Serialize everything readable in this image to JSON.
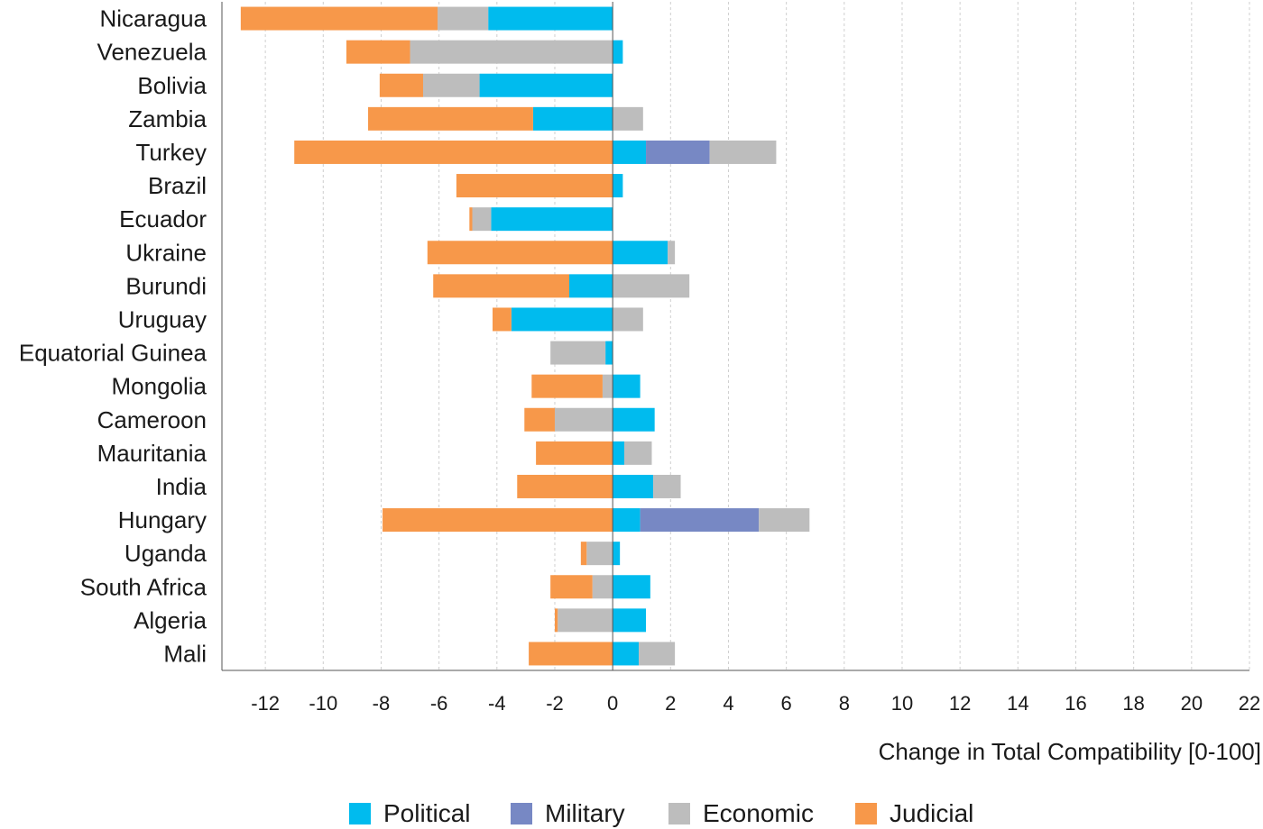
{
  "chart_data": {
    "type": "bar",
    "orientation": "horizontal",
    "stacked": true,
    "title": "",
    "xlabel": "Change in Total Compatibility [0-100]",
    "ylabel": "",
    "xlim": [
      -13.5,
      22
    ],
    "xticks": [
      -12,
      -10,
      -8,
      -6,
      -4,
      -2,
      0,
      2,
      4,
      6,
      8,
      10,
      12,
      14,
      16,
      18,
      20,
      22
    ],
    "xtick_labels": [
      "-12",
      "-10",
      "-8",
      "-6",
      "-4",
      "-2",
      "0",
      "2",
      "4",
      "6",
      "8",
      "10",
      "12",
      "14",
      "16",
      "18",
      "20",
      "22"
    ],
    "grid": "vertical dashed",
    "legend_position": "bottom",
    "categories": [
      "Nicaragua",
      "Venezuela",
      "Bolivia",
      "Zambia",
      "Turkey",
      "Brazil",
      "Ecuador",
      "Ukraine",
      "Burundi",
      "Uruguay",
      "Equatorial Guinea",
      "Mongolia",
      "Cameroon",
      "Mauritania",
      "India",
      "Hungary",
      "Uganda",
      "South Africa",
      "Algeria",
      "Mali"
    ],
    "series": [
      {
        "name": "Political",
        "color": "#00BBEE",
        "values": [
          -4.3,
          0.35,
          -4.6,
          -2.75,
          1.15,
          0.35,
          -4.2,
          1.9,
          -1.5,
          -3.5,
          -0.25,
          0.95,
          1.45,
          0.4,
          1.4,
          0.95,
          0.25,
          1.3,
          1.15,
          0.9
        ]
      },
      {
        "name": "Military",
        "color": "#7788C4",
        "values": [
          0,
          0,
          0,
          0,
          2.2,
          0,
          0,
          0,
          0,
          0,
          0,
          0,
          0,
          0,
          0,
          4.1,
          0,
          0,
          0,
          0
        ]
      },
      {
        "name": "Economic",
        "color": "#BDBDBD",
        "values": [
          -1.75,
          -7,
          -1.95,
          1.05,
          2.3,
          0,
          -0.65,
          0.25,
          2.65,
          1.05,
          -1.9,
          -0.35,
          -2.0,
          0.95,
          0.95,
          1.75,
          -0.9,
          -0.7,
          -1.9,
          1.25
        ]
      },
      {
        "name": "Judicial",
        "color": "#F7984A",
        "values": [
          -6.8,
          -2.2,
          -1.5,
          -5.7,
          -11,
          -5.4,
          -0.1,
          -6.4,
          -4.7,
          -0.65,
          0,
          -2.45,
          -1.05,
          -2.65,
          -3.3,
          -7.95,
          -0.2,
          -1.45,
          -0.1,
          -2.9
        ]
      }
    ]
  }
}
